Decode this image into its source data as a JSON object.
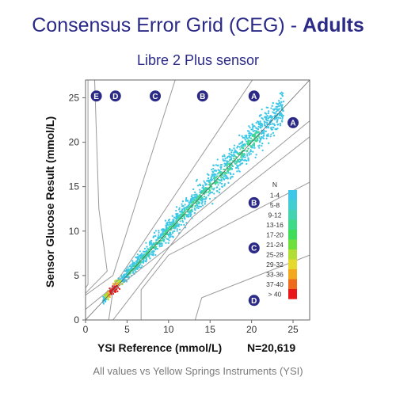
{
  "header": {
    "title_main": "Consensus Error Grid (CEG) - ",
    "title_bold": "Adults",
    "subtitle": "Libre 2 Plus sensor"
  },
  "footer": "All values vs Yellow Springs Instruments (YSI)",
  "colors": {
    "title": "#2b2a87",
    "zone_marker": "#2b2a87",
    "scatter": "#3ec7e6",
    "grid_lines": "#9a9a9a"
  },
  "chart_data": {
    "type": "scatter",
    "xlabel": "YSI Reference (mmol/L)",
    "ylabel": "Sensor Glucose Result (mmol/L)",
    "n_label": "N=20,619",
    "xlim": [
      0,
      27
    ],
    "ylim": [
      0,
      27
    ],
    "x_ticks": [
      0,
      5,
      10,
      15,
      20,
      25
    ],
    "y_ticks": [
      0,
      5,
      10,
      15,
      20,
      25
    ],
    "grid": false,
    "legend_position": "right",
    "legend": {
      "title": "N",
      "entries": [
        {
          "label": "1-4",
          "color": "#3ec7e6"
        },
        {
          "label": "5-8",
          "color": "#41cdd2"
        },
        {
          "label": "9-12",
          "color": "#44d3b0"
        },
        {
          "label": "13-16",
          "color": "#3fd98a"
        },
        {
          "label": "17-20",
          "color": "#3fdc5a"
        },
        {
          "label": "21-24",
          "color": "#6fdf3c"
        },
        {
          "label": "25-28",
          "color": "#b1de34"
        },
        {
          "label": "29-32",
          "color": "#e4d92c"
        },
        {
          "label": "33-36",
          "color": "#f2a71f"
        },
        {
          "label": "37-40",
          "color": "#ef6b1c"
        },
        {
          "label": "> 40",
          "color": "#e8161a"
        }
      ]
    },
    "zone_labels": [
      {
        "label": "E",
        "x": 1.3,
        "y": 25.2
      },
      {
        "label": "D",
        "x": 3.6,
        "y": 25.2
      },
      {
        "label": "C",
        "x": 8.4,
        "y": 25.2
      },
      {
        "label": "B",
        "x": 14.1,
        "y": 25.2
      },
      {
        "label": "A",
        "x": 20.3,
        "y": 25.2
      },
      {
        "label": "A",
        "x": 25.0,
        "y": 22.2
      },
      {
        "label": "B",
        "x": 20.3,
        "y": 13.2
      },
      {
        "label": "C",
        "x": 20.3,
        "y": 8.1
      },
      {
        "label": "D",
        "x": 20.3,
        "y": 2.2
      }
    ],
    "zone_boundaries": [
      [
        [
          0,
          1.2
        ],
        [
          3.3,
          3.7
        ],
        [
          20.1,
          27
        ]
      ],
      [
        [
          0,
          2.8
        ],
        [
          3.3,
          5.0
        ],
        [
          10.8,
          27
        ]
      ],
      [
        [
          0,
          3.0
        ],
        [
          2.6,
          5.5
        ],
        [
          1.6,
          12.5
        ],
        [
          1.1,
          27
        ]
      ],
      [
        [
          0,
          3.6
        ],
        [
          0.3,
          4.0
        ],
        [
          0.3,
          27
        ]
      ],
      [
        [
          2.8,
          0
        ],
        [
          3.3,
          3.3
        ],
        [
          27,
          20.6
        ]
      ],
      [
        [
          3.3,
          0
        ],
        [
          12.8,
          11.5
        ],
        [
          27,
          22.4
        ]
      ],
      [
        [
          6.7,
          0
        ],
        [
          6.7,
          3.4
        ],
        [
          10,
          7.3
        ],
        [
          27,
          15.5
        ]
      ],
      [
        [
          13.2,
          0
        ],
        [
          14.0,
          2.5
        ],
        [
          27,
          7.3
        ]
      ]
    ],
    "identity_line": [
      [
        0,
        0
      ],
      [
        27,
        27
      ]
    ],
    "series": [
      {
        "density": "dense band along the line y = x",
        "x_range": [
          2.0,
          24.5
        ],
        "y_range": [
          1.8,
          27.0
        ],
        "highest_density_at": [
          3.5,
          3.3
        ]
      }
    ]
  }
}
